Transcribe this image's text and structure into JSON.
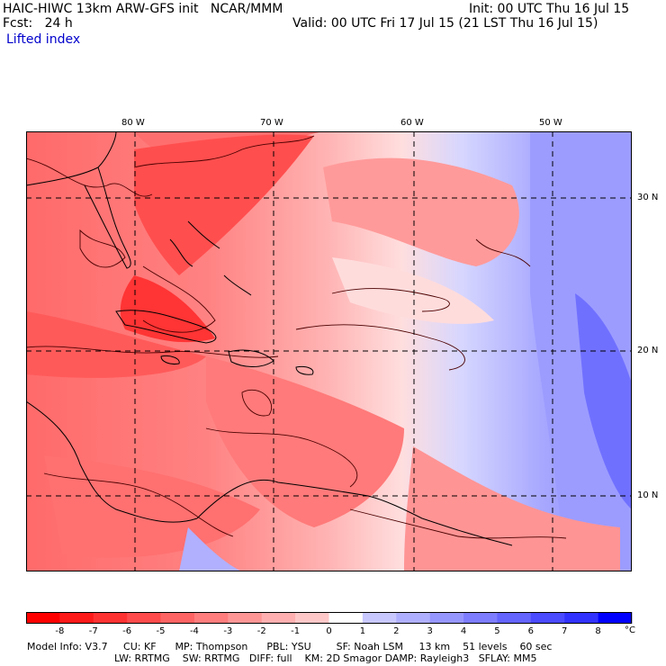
{
  "header": {
    "model_title": "HAIC-HIWC 13km ARW-GFS init   NCAR/MMM",
    "init": "Init: 00 UTC Thu 16 Jul 15",
    "fcst_label": "Fcst:   24 h",
    "valid": "Valid: 00 UTC Fri 17 Jul 15 (21 LST Thu 16 Jul 15)",
    "field": "Lifted index"
  },
  "map": {
    "lon_labels": [
      "80 W",
      "70 W",
      "60 W",
      "50 W"
    ],
    "lat_labels": [
      "30 N",
      "20 N",
      "10 N"
    ]
  },
  "colorbar": {
    "unit": "°C",
    "labels": [
      "-8",
      "-7",
      "-6",
      "-5",
      "-4",
      "-3",
      "-2",
      "-1",
      "0",
      "1",
      "2",
      "3",
      "4",
      "5",
      "6",
      "7",
      "8"
    ],
    "colors": [
      "#ff0000",
      "#ff1a1a",
      "#ff3232",
      "#ff4b4b",
      "#ff6464",
      "#ff7d7d",
      "#ff9696",
      "#ffafaf",
      "#ffc8c8",
      "#ffffff",
      "#c8c8ff",
      "#afafff",
      "#9696ff",
      "#7d7dff",
      "#6464ff",
      "#4b4bff",
      "#3232ff",
      "#0000ff"
    ]
  },
  "footer": {
    "line1": "Model Info: V3.7     CU: KF      MP: Thompson      PBL: YSU        SF: Noah LSM     13 km    51 levels    60 sec",
    "line2": "LW: RRTMG    SW: RRTMG   DIFF: full    KM: 2D Smagor DAMP: Rayleigh3   SFLAY: MM5"
  }
}
